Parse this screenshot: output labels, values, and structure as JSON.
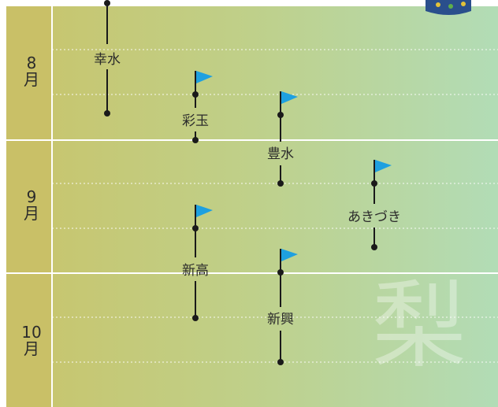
{
  "months": [
    {
      "label_num": "8",
      "label_unit": "月"
    },
    {
      "label_num": "9",
      "label_unit": "月"
    },
    {
      "label_num": "10",
      "label_unit": "月"
    }
  ],
  "varieties": [
    {
      "name": "幸水",
      "flag": false
    },
    {
      "name": "彩玉",
      "flag": true
    },
    {
      "name": "豊水",
      "flag": true
    },
    {
      "name": "あきづき",
      "flag": true
    },
    {
      "name": "新高",
      "flag": true
    },
    {
      "name": "新興",
      "flag": true
    }
  ],
  "watermark": "梨",
  "colors": {
    "flag": "#1ea0e0",
    "line": "#1a1a1a",
    "grad_left": "#c7c26a",
    "grad_right": "#b3dcb4"
  }
}
